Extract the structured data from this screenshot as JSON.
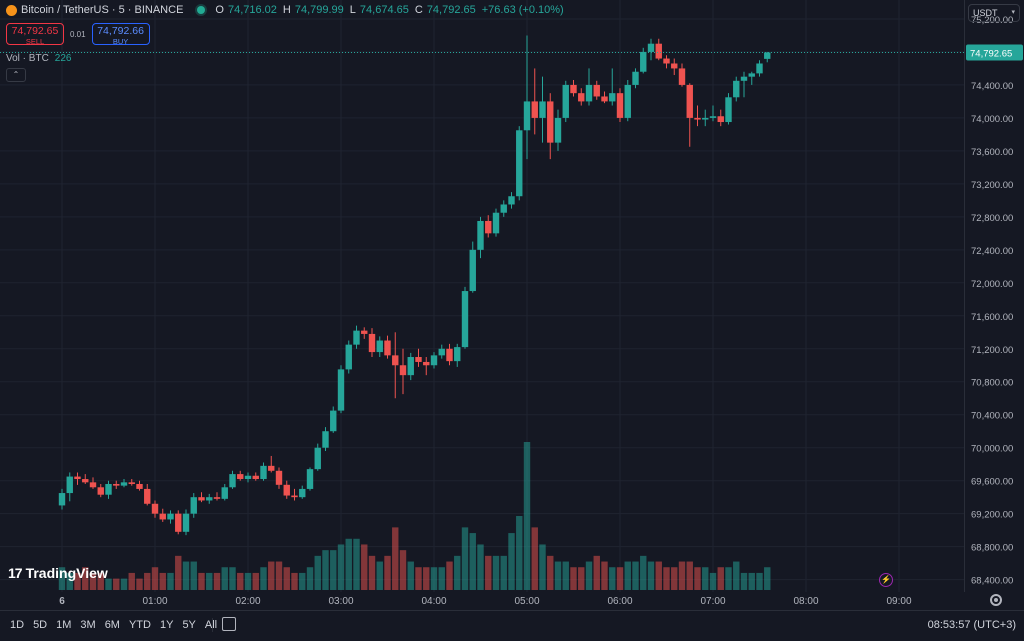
{
  "legend": {
    "symbol": "Bitcoin / TetherUS · 5 · BINANCE",
    "open_label": "O",
    "open": "74,716.02",
    "high_label": "H",
    "high": "74,799.99",
    "low_label": "L",
    "low": "74,674.65",
    "close_label": "C",
    "close": "74,792.65",
    "change": "+76.63 (+0.10%)"
  },
  "trade": {
    "sell_price": "74,792.65",
    "sell_label": "SELL",
    "spread": "0.01",
    "buy_price": "74,792.66",
    "buy_label": "BUY"
  },
  "volume_legend": {
    "label": "Vol · BTC",
    "value": "226"
  },
  "currency": {
    "value": "USDT"
  },
  "brand": {
    "name": "TradingView",
    "mark": "17"
  },
  "bottom_bar": {
    "ranges": [
      "1D",
      "5D",
      "1M",
      "3M",
      "6M",
      "YTD",
      "1Y",
      "5Y",
      "All"
    ],
    "clock": "08:53:57 (UTC+3)"
  },
  "colors": {
    "up": "#26a69a",
    "down": "#ef5350",
    "background": "#151823",
    "grid": "#1f2330",
    "accent": "#2962ff"
  },
  "chart_data": {
    "type": "candlestick",
    "title": "Bitcoin / TetherUS · 5 · BINANCE",
    "y_ticks": [
      "75,200.00",
      "74,800.00",
      "74,400.00",
      "74,000.00",
      "73,600.00",
      "73,200.00",
      "72,800.00",
      "72,400.00",
      "72,000.00",
      "71,600.00",
      "71,200.00",
      "70,800.00",
      "70,400.00",
      "70,000.00",
      "69,600.00",
      "69,200.00",
      "68,800.00",
      "68,400.00"
    ],
    "y_tick_values": [
      75200,
      74800,
      74400,
      74000,
      73600,
      73200,
      72800,
      72400,
      72000,
      71600,
      71200,
      70800,
      70400,
      70000,
      69600,
      69200,
      68800,
      68400
    ],
    "ylim": [
      68250,
      75430
    ],
    "x_ticks": [
      "6",
      "01:00",
      "02:00",
      "03:00",
      "04:00",
      "05:00",
      "06:00",
      "07:00",
      "08:00",
      "09:00"
    ],
    "x_tick_times": [
      "00:00",
      "01:00",
      "02:00",
      "03:00",
      "04:00",
      "05:00",
      "06:00",
      "07:00",
      "08:00",
      "09:00"
    ],
    "last_price": "74,792.65",
    "last_price_value": 74792.65,
    "candles": [
      {
        "t": "00:00",
        "o": 69300,
        "h": 69500,
        "l": 69250,
        "c": 69450,
        "v": 4
      },
      {
        "t": "00:05",
        "o": 69450,
        "h": 69700,
        "l": 69350,
        "c": 69650,
        "v": 3
      },
      {
        "t": "00:10",
        "o": 69650,
        "h": 69700,
        "l": 69550,
        "c": 69620,
        "v": 3
      },
      {
        "t": "00:15",
        "o": 69620,
        "h": 69680,
        "l": 69560,
        "c": 69580,
        "v": 4
      },
      {
        "t": "00:20",
        "o": 69580,
        "h": 69640,
        "l": 69500,
        "c": 69520,
        "v": 3
      },
      {
        "t": "00:25",
        "o": 69520,
        "h": 69560,
        "l": 69400,
        "c": 69430,
        "v": 3
      },
      {
        "t": "00:30",
        "o": 69430,
        "h": 69600,
        "l": 69380,
        "c": 69560,
        "v": 2
      },
      {
        "t": "00:35",
        "o": 69560,
        "h": 69600,
        "l": 69500,
        "c": 69540,
        "v": 2
      },
      {
        "t": "00:40",
        "o": 69540,
        "h": 69620,
        "l": 69520,
        "c": 69580,
        "v": 2
      },
      {
        "t": "00:45",
        "o": 69580,
        "h": 69620,
        "l": 69540,
        "c": 69560,
        "v": 3
      },
      {
        "t": "00:50",
        "o": 69560,
        "h": 69600,
        "l": 69480,
        "c": 69500,
        "v": 2
      },
      {
        "t": "00:55",
        "o": 69500,
        "h": 69560,
        "l": 69300,
        "c": 69320,
        "v": 3
      },
      {
        "t": "01:00",
        "o": 69320,
        "h": 69360,
        "l": 69150,
        "c": 69200,
        "v": 4
      },
      {
        "t": "01:05",
        "o": 69200,
        "h": 69260,
        "l": 69100,
        "c": 69130,
        "v": 3
      },
      {
        "t": "01:10",
        "o": 69130,
        "h": 69240,
        "l": 69080,
        "c": 69200,
        "v": 3
      },
      {
        "t": "01:15",
        "o": 69200,
        "h": 69240,
        "l": 68950,
        "c": 68980,
        "v": 6
      },
      {
        "t": "01:20",
        "o": 68980,
        "h": 69250,
        "l": 68940,
        "c": 69200,
        "v": 5
      },
      {
        "t": "01:25",
        "o": 69200,
        "h": 69450,
        "l": 69150,
        "c": 69400,
        "v": 5
      },
      {
        "t": "01:30",
        "o": 69400,
        "h": 69460,
        "l": 69340,
        "c": 69360,
        "v": 3
      },
      {
        "t": "01:35",
        "o": 69360,
        "h": 69440,
        "l": 69320,
        "c": 69400,
        "v": 3
      },
      {
        "t": "01:40",
        "o": 69400,
        "h": 69460,
        "l": 69360,
        "c": 69380,
        "v": 3
      },
      {
        "t": "01:45",
        "o": 69380,
        "h": 69560,
        "l": 69360,
        "c": 69520,
        "v": 4
      },
      {
        "t": "01:50",
        "o": 69520,
        "h": 69720,
        "l": 69500,
        "c": 69680,
        "v": 4
      },
      {
        "t": "01:55",
        "o": 69680,
        "h": 69720,
        "l": 69600,
        "c": 69620,
        "v": 3
      },
      {
        "t": "02:00",
        "o": 69620,
        "h": 69700,
        "l": 69580,
        "c": 69660,
        "v": 3
      },
      {
        "t": "02:05",
        "o": 69660,
        "h": 69700,
        "l": 69600,
        "c": 69620,
        "v": 3
      },
      {
        "t": "02:10",
        "o": 69620,
        "h": 69820,
        "l": 69600,
        "c": 69780,
        "v": 4
      },
      {
        "t": "02:15",
        "o": 69780,
        "h": 69900,
        "l": 69700,
        "c": 69720,
        "v": 5
      },
      {
        "t": "02:20",
        "o": 69720,
        "h": 69760,
        "l": 69500,
        "c": 69550,
        "v": 5
      },
      {
        "t": "02:25",
        "o": 69550,
        "h": 69600,
        "l": 69380,
        "c": 69420,
        "v": 4
      },
      {
        "t": "02:30",
        "o": 69420,
        "h": 69500,
        "l": 69360,
        "c": 69400,
        "v": 3
      },
      {
        "t": "02:35",
        "o": 69400,
        "h": 69540,
        "l": 69380,
        "c": 69500,
        "v": 3
      },
      {
        "t": "02:40",
        "o": 69500,
        "h": 69760,
        "l": 69480,
        "c": 69740,
        "v": 4
      },
      {
        "t": "02:45",
        "o": 69740,
        "h": 70050,
        "l": 69720,
        "c": 70000,
        "v": 6
      },
      {
        "t": "02:50",
        "o": 70000,
        "h": 70250,
        "l": 69960,
        "c": 70200,
        "v": 7
      },
      {
        "t": "02:55",
        "o": 70200,
        "h": 70500,
        "l": 70180,
        "c": 70450,
        "v": 7
      },
      {
        "t": "03:00",
        "o": 70450,
        "h": 71000,
        "l": 70420,
        "c": 70950,
        "v": 8
      },
      {
        "t": "03:05",
        "o": 70950,
        "h": 71300,
        "l": 70900,
        "c": 71250,
        "v": 9
      },
      {
        "t": "03:10",
        "o": 71250,
        "h": 71480,
        "l": 71200,
        "c": 71420,
        "v": 9
      },
      {
        "t": "03:15",
        "o": 71420,
        "h": 71460,
        "l": 71320,
        "c": 71380,
        "v": 8
      },
      {
        "t": "03:20",
        "o": 71380,
        "h": 71450,
        "l": 71100,
        "c": 71160,
        "v": 6
      },
      {
        "t": "03:25",
        "o": 71160,
        "h": 71350,
        "l": 71100,
        "c": 71300,
        "v": 5
      },
      {
        "t": "03:30",
        "o": 71300,
        "h": 71360,
        "l": 71080,
        "c": 71120,
        "v": 6
      },
      {
        "t": "03:35",
        "o": 71120,
        "h": 71400,
        "l": 70600,
        "c": 71000,
        "v": 11
      },
      {
        "t": "03:40",
        "o": 71000,
        "h": 71200,
        "l": 70650,
        "c": 70880,
        "v": 7
      },
      {
        "t": "03:45",
        "o": 70880,
        "h": 71150,
        "l": 70820,
        "c": 71100,
        "v": 5
      },
      {
        "t": "03:50",
        "o": 71100,
        "h": 71200,
        "l": 70980,
        "c": 71040,
        "v": 4
      },
      {
        "t": "03:55",
        "o": 71040,
        "h": 71100,
        "l": 70880,
        "c": 71000,
        "v": 4
      },
      {
        "t": "04:00",
        "o": 71000,
        "h": 71160,
        "l": 70960,
        "c": 71120,
        "v": 4
      },
      {
        "t": "04:05",
        "o": 71120,
        "h": 71250,
        "l": 71080,
        "c": 71200,
        "v": 4
      },
      {
        "t": "04:10",
        "o": 71200,
        "h": 71260,
        "l": 71000,
        "c": 71050,
        "v": 5
      },
      {
        "t": "04:15",
        "o": 71050,
        "h": 71260,
        "l": 70980,
        "c": 71220,
        "v": 6
      },
      {
        "t": "04:20",
        "o": 71220,
        "h": 71950,
        "l": 71200,
        "c": 71900,
        "v": 11
      },
      {
        "t": "04:25",
        "o": 71900,
        "h": 72500,
        "l": 71880,
        "c": 72400,
        "v": 10
      },
      {
        "t": "04:30",
        "o": 72400,
        "h": 72800,
        "l": 72300,
        "c": 72750,
        "v": 8
      },
      {
        "t": "04:35",
        "o": 72750,
        "h": 72820,
        "l": 72550,
        "c": 72600,
        "v": 6
      },
      {
        "t": "04:40",
        "o": 72600,
        "h": 72900,
        "l": 72560,
        "c": 72850,
        "v": 6
      },
      {
        "t": "04:45",
        "o": 72850,
        "h": 73000,
        "l": 72800,
        "c": 72950,
        "v": 6
      },
      {
        "t": "04:50",
        "o": 72950,
        "h": 73100,
        "l": 72900,
        "c": 73050,
        "v": 10
      },
      {
        "t": "04:55",
        "o": 73050,
        "h": 73900,
        "l": 73000,
        "c": 73850,
        "v": 13
      },
      {
        "t": "05:00",
        "o": 73850,
        "h": 75000,
        "l": 73500,
        "c": 74200,
        "v": 26
      },
      {
        "t": "05:05",
        "o": 74200,
        "h": 74600,
        "l": 73800,
        "c": 74000,
        "v": 11
      },
      {
        "t": "05:10",
        "o": 74000,
        "h": 74500,
        "l": 73700,
        "c": 74200,
        "v": 8
      },
      {
        "t": "05:15",
        "o": 74200,
        "h": 74300,
        "l": 73500,
        "c": 73700,
        "v": 6
      },
      {
        "t": "05:20",
        "o": 73700,
        "h": 74100,
        "l": 73600,
        "c": 74000,
        "v": 5
      },
      {
        "t": "05:25",
        "o": 74000,
        "h": 74450,
        "l": 73950,
        "c": 74400,
        "v": 5
      },
      {
        "t": "05:30",
        "o": 74400,
        "h": 74460,
        "l": 74260,
        "c": 74300,
        "v": 4
      },
      {
        "t": "05:35",
        "o": 74300,
        "h": 74360,
        "l": 74150,
        "c": 74200,
        "v": 4
      },
      {
        "t": "05:40",
        "o": 74200,
        "h": 74600,
        "l": 74150,
        "c": 74400,
        "v": 5
      },
      {
        "t": "05:45",
        "o": 74400,
        "h": 74450,
        "l": 74220,
        "c": 74260,
        "v": 6
      },
      {
        "t": "05:50",
        "o": 74260,
        "h": 74320,
        "l": 74180,
        "c": 74200,
        "v": 5
      },
      {
        "t": "05:55",
        "o": 74200,
        "h": 74600,
        "l": 74150,
        "c": 74300,
        "v": 4
      },
      {
        "t": "06:00",
        "o": 74300,
        "h": 74360,
        "l": 73950,
        "c": 74000,
        "v": 4
      },
      {
        "t": "06:05",
        "o": 74000,
        "h": 74460,
        "l": 73960,
        "c": 74400,
        "v": 5
      },
      {
        "t": "06:10",
        "o": 74400,
        "h": 74600,
        "l": 74360,
        "c": 74560,
        "v": 5
      },
      {
        "t": "06:15",
        "o": 74560,
        "h": 74850,
        "l": 74540,
        "c": 74800,
        "v": 6
      },
      {
        "t": "06:20",
        "o": 74800,
        "h": 74960,
        "l": 74700,
        "c": 74900,
        "v": 5
      },
      {
        "t": "06:25",
        "o": 74900,
        "h": 74960,
        "l": 74700,
        "c": 74720,
        "v": 5
      },
      {
        "t": "06:30",
        "o": 74720,
        "h": 74760,
        "l": 74600,
        "c": 74660,
        "v": 4
      },
      {
        "t": "06:35",
        "o": 74660,
        "h": 74720,
        "l": 74520,
        "c": 74600,
        "v": 4
      },
      {
        "t": "06:40",
        "o": 74600,
        "h": 74660,
        "l": 74380,
        "c": 74400,
        "v": 5
      },
      {
        "t": "06:45",
        "o": 74400,
        "h": 74420,
        "l": 73650,
        "c": 74000,
        "v": 5
      },
      {
        "t": "06:50",
        "o": 74000,
        "h": 74150,
        "l": 73900,
        "c": 73980,
        "v": 4
      },
      {
        "t": "06:55",
        "o": 73980,
        "h": 74100,
        "l": 73900,
        "c": 74000,
        "v": 4
      },
      {
        "t": "07:00",
        "o": 74000,
        "h": 74150,
        "l": 73960,
        "c": 74020,
        "v": 3
      },
      {
        "t": "07:05",
        "o": 74020,
        "h": 74100,
        "l": 73900,
        "c": 73950,
        "v": 4
      },
      {
        "t": "07:10",
        "o": 73950,
        "h": 74300,
        "l": 73920,
        "c": 74250,
        "v": 4
      },
      {
        "t": "07:15",
        "o": 74250,
        "h": 74500,
        "l": 74200,
        "c": 74450,
        "v": 5
      },
      {
        "t": "07:20",
        "o": 74450,
        "h": 74560,
        "l": 74250,
        "c": 74500,
        "v": 3
      },
      {
        "t": "07:25",
        "o": 74500,
        "h": 74560,
        "l": 74400,
        "c": 74540,
        "v": 3
      },
      {
        "t": "07:30",
        "o": 74540,
        "h": 74700,
        "l": 74500,
        "c": 74660,
        "v": 3
      },
      {
        "t": "07:35",
        "o": 74716.02,
        "h": 74799.99,
        "l": 74674.65,
        "c": 74792.65,
        "v": 4
      }
    ]
  }
}
